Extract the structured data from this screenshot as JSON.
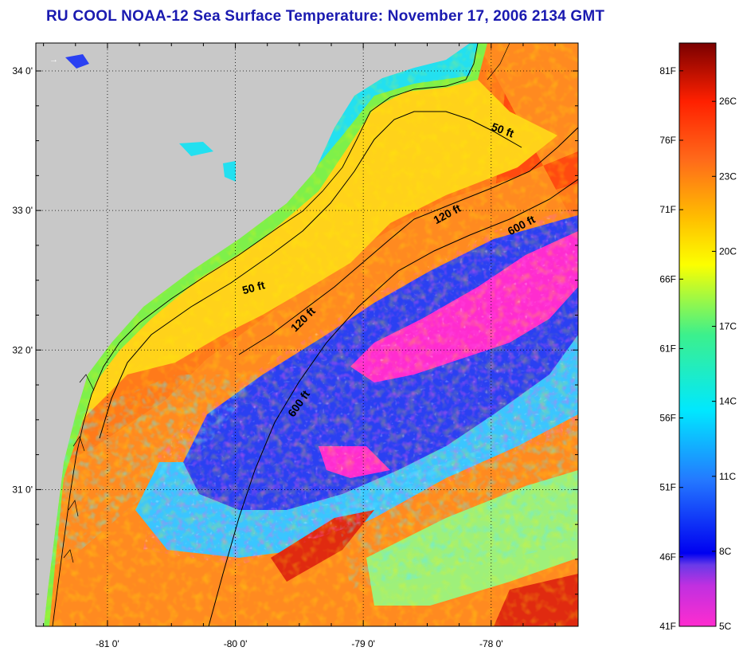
{
  "title": "RU COOL  NOAA-12  Sea Surface Temperature:  November 17, 2006 2134 GMT",
  "colors": {
    "land": "#c8c8c8",
    "title": "#1a1ab0",
    "grid": "#000000"
  },
  "map": {
    "longitude_ticks": [
      {
        "value": -81,
        "label": "-81 0'"
      },
      {
        "value": -80,
        "label": "-80 0'"
      },
      {
        "value": -79,
        "label": "-79 0'"
      },
      {
        "value": -78,
        "label": "-78 0'"
      }
    ],
    "latitude_ticks": [
      {
        "value": 34,
        "label": "34 0'"
      },
      {
        "value": 33,
        "label": "33 0'"
      },
      {
        "value": 32,
        "label": "32 0'"
      },
      {
        "value": 31,
        "label": "31 0'"
      }
    ],
    "lon_range": [
      -81.56,
      -77.32
    ],
    "lat_range": [
      30.02,
      34.2
    ],
    "contour_labels": [
      {
        "text": "50 ft",
        "lon": -77.92,
        "lat": 33.55,
        "angle": 20
      },
      {
        "text": "120 ft",
        "lon": -78.33,
        "lat": 32.95,
        "angle": -28
      },
      {
        "text": "600 ft",
        "lon": -77.75,
        "lat": 32.87,
        "angle": -28
      },
      {
        "text": "50 ft",
        "lon": -79.85,
        "lat": 32.42,
        "angle": -15
      },
      {
        "text": "120 ft",
        "lon": -79.45,
        "lat": 32.2,
        "angle": -45
      },
      {
        "text": "600 ft",
        "lon": -79.48,
        "lat": 31.6,
        "angle": -55
      }
    ]
  },
  "colorbar": {
    "fahrenheit_labels": [
      "81F",
      "76F",
      "71F",
      "66F",
      "61F",
      "56F",
      "51F",
      "46F",
      "41F"
    ],
    "celsius_labels": [
      "26C",
      "23C",
      "20C",
      "17C",
      "14C",
      "11C",
      "8C",
      "5C"
    ],
    "f_range": [
      41,
      83
    ],
    "stops": [
      {
        "pos": 0.0,
        "color": "#ff2ccf"
      },
      {
        "pos": 0.07,
        "color": "#c030e0"
      },
      {
        "pos": 0.105,
        "color": "#6a3ae8"
      },
      {
        "pos": 0.125,
        "color": "#0000f0"
      },
      {
        "pos": 0.25,
        "color": "#2478ff"
      },
      {
        "pos": 0.37,
        "color": "#00e8ff"
      },
      {
        "pos": 0.5,
        "color": "#3cf08c"
      },
      {
        "pos": 0.62,
        "color": "#fcff00"
      },
      {
        "pos": 0.7,
        "color": "#ffbe00"
      },
      {
        "pos": 0.8,
        "color": "#ff6a1a"
      },
      {
        "pos": 0.9,
        "color": "#ff2000"
      },
      {
        "pos": 1.0,
        "color": "#7a0000"
      }
    ]
  }
}
